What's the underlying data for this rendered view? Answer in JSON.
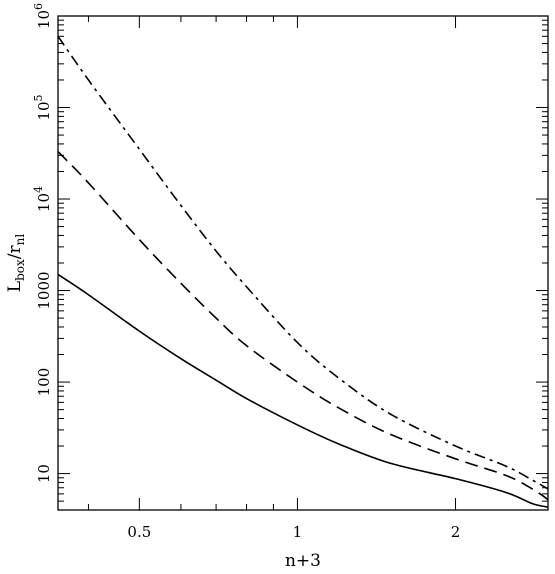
{
  "chart_data": {
    "type": "line",
    "xlabel": "n+3",
    "ylabel": {
      "base": "L",
      "base_sub": "box",
      "mid": "/r",
      "mid_sub": "nl"
    },
    "xscale": "log",
    "yscale": "log",
    "xlim": [
      0.35,
      3.0
    ],
    "ylim": [
      4,
      1000000
    ],
    "x_ticks": [
      {
        "value": 0.5,
        "label": "0.5"
      },
      {
        "value": 1,
        "label": "1"
      },
      {
        "value": 2,
        "label": "2"
      }
    ],
    "y_ticks": [
      {
        "value": 10,
        "label": "10"
      },
      {
        "value": 100,
        "label": "100"
      },
      {
        "value": 1000,
        "label": "1000"
      },
      {
        "value": 10000,
        "label": "10",
        "exp": "4"
      },
      {
        "value": 100000,
        "label": "10",
        "exp": "5"
      },
      {
        "value": 1000000,
        "label": "10",
        "exp": "6"
      }
    ],
    "series": [
      {
        "style": "solid",
        "x": [
          0.35,
          0.4,
          0.5,
          0.6,
          0.7,
          0.8,
          1.0,
          1.2,
          1.5,
          2.0,
          2.5,
          2.8,
          3.0
        ],
        "y": [
          1500,
          900,
          360,
          180,
          105,
          66,
          34,
          21,
          13,
          8.8,
          6.2,
          4.7,
          4.3
        ]
      },
      {
        "style": "dashed",
        "x": [
          0.35,
          0.4,
          0.5,
          0.6,
          0.7,
          0.8,
          1.0,
          1.2,
          1.5,
          2.0,
          2.5,
          2.8,
          3.0
        ],
        "y": [
          33000,
          15000,
          3600,
          1200,
          500,
          250,
          100,
          52,
          27,
          14.5,
          9.5,
          6.8,
          5.2
        ]
      },
      {
        "style": "dashdot",
        "x": [
          0.35,
          0.4,
          0.5,
          0.6,
          0.7,
          0.8,
          1.0,
          1.2,
          1.5,
          2.0,
          2.5,
          2.8,
          3.0
        ],
        "y": [
          600000,
          200000,
          35000,
          8500,
          2700,
          1100,
          270,
          110,
          45,
          20,
          12,
          8.5,
          6.8
        ]
      }
    ]
  }
}
